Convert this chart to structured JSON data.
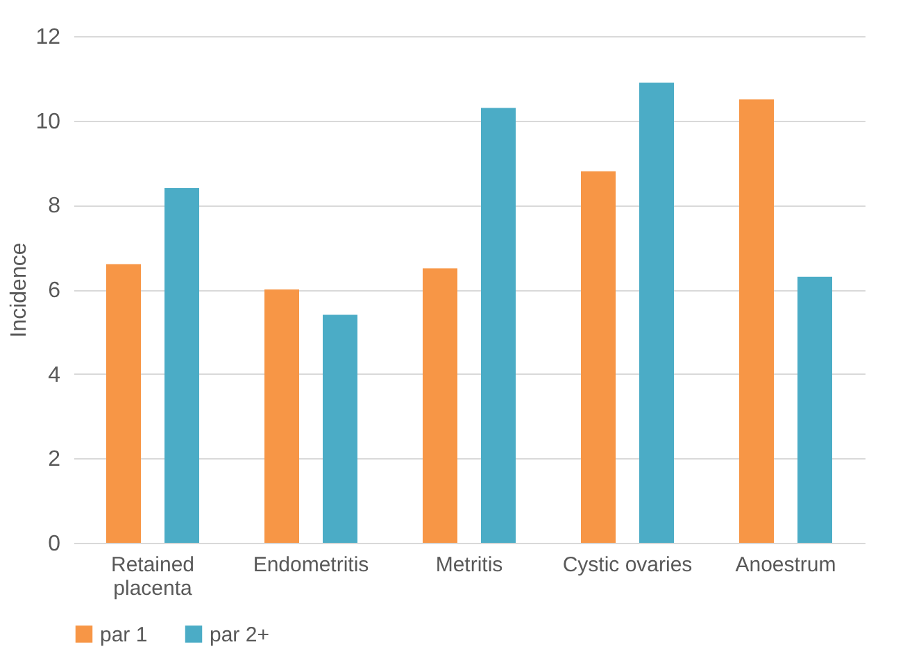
{
  "chart_data": {
    "type": "bar",
    "ylabel": "Incidence",
    "categories": [
      "Retained placenta",
      "Endometritis",
      "Metritis",
      "Cystic ovaries",
      "Anoestrum"
    ],
    "series": [
      {
        "name": "par 1",
        "color": "#f79646",
        "values": [
          6.6,
          6.0,
          6.5,
          8.8,
          10.5
        ]
      },
      {
        "name": "par 2+",
        "color": "#4bacc6",
        "values": [
          8.4,
          5.4,
          10.3,
          10.9,
          6.3
        ]
      }
    ],
    "ylim": [
      0,
      12
    ],
    "yticks": [
      0,
      2,
      4,
      6,
      8,
      10,
      12
    ],
    "grid": "y",
    "legend": "bottom"
  }
}
